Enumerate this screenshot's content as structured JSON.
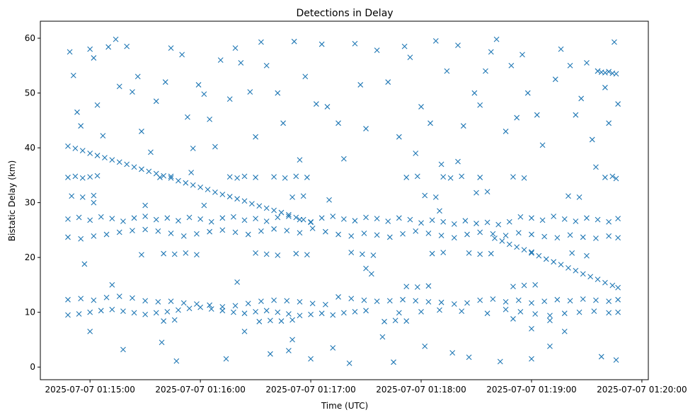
{
  "chart_data": {
    "type": "scatter",
    "title": "Detections in Delay",
    "xlabel": "Time (UTC)",
    "ylabel": "Bistatic Delay (km)",
    "x_unit": "seconds after 2025-07-07 01:14:00",
    "xlim": [
      33,
      363.5
    ],
    "ylim": [
      -2.3,
      63.1
    ],
    "grid": false,
    "marker": "x",
    "color": "#1f77b4",
    "x_ticks": [
      {
        "value": 60,
        "label": "2025-07-07 01:15:00"
      },
      {
        "value": 120,
        "label": "2025-07-07 01:16:00"
      },
      {
        "value": 180,
        "label": "2025-07-07 01:17:00"
      },
      {
        "value": 240,
        "label": "2025-07-07 01:18:00"
      },
      {
        "value": 300,
        "label": "2025-07-07 01:19:00"
      },
      {
        "value": 360,
        "label": "2025-07-07 01:20:00"
      }
    ],
    "y_ticks": [
      {
        "value": 0,
        "label": "0"
      },
      {
        "value": 10,
        "label": "10"
      },
      {
        "value": 20,
        "label": "20"
      },
      {
        "value": 30,
        "label": "30"
      },
      {
        "value": 40,
        "label": "40"
      },
      {
        "value": 50,
        "label": "50"
      },
      {
        "value": 60,
        "label": "60"
      }
    ],
    "points": [
      [
        48,
        40.3
      ],
      [
        52,
        39.9
      ],
      [
        56,
        39.5
      ],
      [
        60,
        39.0
      ],
      [
        64,
        38.6
      ],
      [
        68,
        38.2
      ],
      [
        72,
        37.8
      ],
      [
        76,
        37.4
      ],
      [
        80,
        37.0
      ],
      [
        84,
        36.5
      ],
      [
        88,
        36.1
      ],
      [
        92,
        35.7
      ],
      [
        96,
        35.3
      ],
      [
        100,
        34.9
      ],
      [
        104,
        34.5
      ],
      [
        108,
        34.0
      ],
      [
        112,
        33.6
      ],
      [
        116,
        33.2
      ],
      [
        120,
        32.8
      ],
      [
        124,
        32.4
      ],
      [
        128,
        31.9
      ],
      [
        132,
        31.5
      ],
      [
        136,
        31.1
      ],
      [
        140,
        30.7
      ],
      [
        144,
        30.3
      ],
      [
        148,
        29.8
      ],
      [
        152,
        29.4
      ],
      [
        156,
        29.0
      ],
      [
        160,
        28.6
      ],
      [
        164,
        28.2
      ],
      [
        168,
        27.8
      ],
      [
        172,
        27.3
      ],
      [
        176,
        26.9
      ],
      [
        180,
        26.5
      ],
      [
        280,
        23.5
      ],
      [
        284,
        23.0
      ],
      [
        288,
        22.4
      ],
      [
        292,
        21.9
      ],
      [
        296,
        21.4
      ],
      [
        300,
        20.8
      ],
      [
        304,
        20.3
      ],
      [
        308,
        19.7
      ],
      [
        312,
        19.2
      ],
      [
        316,
        18.7
      ],
      [
        320,
        18.1
      ],
      [
        324,
        17.6
      ],
      [
        328,
        17.0
      ],
      [
        332,
        16.5
      ],
      [
        336,
        16.0
      ],
      [
        340,
        15.4
      ],
      [
        344,
        14.9
      ],
      [
        347,
        14.5
      ],
      [
        48,
        27.0
      ],
      [
        54,
        27.3
      ],
      [
        60,
        26.8
      ],
      [
        66,
        27.4
      ],
      [
        72,
        27.1
      ],
      [
        78,
        26.6
      ],
      [
        84,
        27.2
      ],
      [
        90,
        27.5
      ],
      [
        96,
        26.9
      ],
      [
        102,
        27.2
      ],
      [
        108,
        26.7
      ],
      [
        114,
        27.3
      ],
      [
        120,
        27.0
      ],
      [
        126,
        26.5
      ],
      [
        132,
        27.2
      ],
      [
        138,
        27.4
      ],
      [
        144,
        26.8
      ],
      [
        150,
        27.1
      ],
      [
        156,
        26.6
      ],
      [
        162,
        27.3
      ],
      [
        168,
        27.5
      ],
      [
        174,
        26.9
      ],
      [
        180,
        26.4
      ],
      [
        186,
        27.2
      ],
      [
        192,
        27.5
      ],
      [
        198,
        27.0
      ],
      [
        204,
        26.7
      ],
      [
        210,
        27.3
      ],
      [
        216,
        27.1
      ],
      [
        222,
        26.6
      ],
      [
        228,
        27.2
      ],
      [
        234,
        26.9
      ],
      [
        240,
        26.3
      ],
      [
        246,
        26.8
      ],
      [
        252,
        26.5
      ],
      [
        258,
        26.1
      ],
      [
        264,
        26.7
      ],
      [
        270,
        26.2
      ],
      [
        276,
        26.4
      ],
      [
        282,
        26.0
      ],
      [
        288,
        26.5
      ],
      [
        294,
        27.4
      ],
      [
        300,
        27.2
      ],
      [
        306,
        26.8
      ],
      [
        312,
        27.5
      ],
      [
        318,
        27.0
      ],
      [
        324,
        26.6
      ],
      [
        330,
        27.2
      ],
      [
        336,
        26.9
      ],
      [
        342,
        26.5
      ],
      [
        347,
        27.1
      ],
      [
        48,
        23.7
      ],
      [
        55,
        23.4
      ],
      [
        62,
        23.9
      ],
      [
        69,
        24.2
      ],
      [
        76,
        24.6
      ],
      [
        83,
        24.9
      ],
      [
        90,
        25.1
      ],
      [
        97,
        24.8
      ],
      [
        104,
        24.4
      ],
      [
        111,
        23.9
      ],
      [
        118,
        24.3
      ],
      [
        125,
        24.7
      ],
      [
        132,
        25.0
      ],
      [
        139,
        24.6
      ],
      [
        146,
        24.2
      ],
      [
        153,
        24.8
      ],
      [
        160,
        25.2
      ],
      [
        167,
        24.9
      ],
      [
        174,
        24.5
      ],
      [
        181,
        25.3
      ],
      [
        188,
        24.7
      ],
      [
        195,
        24.2
      ],
      [
        202,
        23.9
      ],
      [
        209,
        24.4
      ],
      [
        216,
        24.1
      ],
      [
        223,
        23.7
      ],
      [
        230,
        24.3
      ],
      [
        237,
        24.8
      ],
      [
        244,
        24.4
      ],
      [
        251,
        24.0
      ],
      [
        258,
        23.6
      ],
      [
        265,
        24.2
      ],
      [
        272,
        24.6
      ],
      [
        279,
        24.3
      ],
      [
        286,
        24.0
      ],
      [
        293,
        24.5
      ],
      [
        300,
        24.2
      ],
      [
        307,
        23.8
      ],
      [
        314,
        23.6
      ],
      [
        321,
        24.1
      ],
      [
        328,
        23.7
      ],
      [
        335,
        23.5
      ],
      [
        342,
        23.9
      ],
      [
        347,
        23.6
      ],
      [
        48,
        34.6
      ],
      [
        52,
        34.8
      ],
      [
        56,
        34.5
      ],
      [
        60,
        34.7
      ],
      [
        64,
        34.9
      ],
      [
        98,
        34.6
      ],
      [
        104,
        34.8
      ],
      [
        136,
        34.7
      ],
      [
        140,
        34.5
      ],
      [
        144,
        34.8
      ],
      [
        150,
        34.6
      ],
      [
        160,
        34.7
      ],
      [
        166,
        34.5
      ],
      [
        172,
        34.8
      ],
      [
        178,
        34.6
      ],
      [
        232,
        34.6
      ],
      [
        238,
        34.8
      ],
      [
        252,
        34.7
      ],
      [
        256,
        34.5
      ],
      [
        262,
        34.8
      ],
      [
        272,
        34.6
      ],
      [
        290,
        34.7
      ],
      [
        296,
        34.5
      ],
      [
        340,
        34.6
      ],
      [
        346,
        34.4
      ],
      [
        50,
        31.2
      ],
      [
        56,
        31.0
      ],
      [
        62,
        31.3
      ],
      [
        170,
        31.0
      ],
      [
        176,
        31.2
      ],
      [
        242,
        31.3
      ],
      [
        248,
        31.0
      ],
      [
        270,
        31.8
      ],
      [
        276,
        32.0
      ],
      [
        320,
        31.2
      ],
      [
        326,
        31.0
      ],
      [
        100,
        20.7
      ],
      [
        106,
        20.6
      ],
      [
        112,
        20.8
      ],
      [
        118,
        20.5
      ],
      [
        150,
        20.8
      ],
      [
        156,
        20.6
      ],
      [
        162,
        20.4
      ],
      [
        172,
        20.7
      ],
      [
        178,
        20.5
      ],
      [
        202,
        20.9
      ],
      [
        208,
        20.6
      ],
      [
        214,
        20.4
      ],
      [
        246,
        20.7
      ],
      [
        252,
        20.9
      ],
      [
        266,
        20.8
      ],
      [
        272,
        20.6
      ],
      [
        278,
        20.7
      ],
      [
        300,
        21.0
      ],
      [
        322,
        20.8
      ],
      [
        330,
        20.3
      ],
      [
        48,
        12.3
      ],
      [
        55,
        12.5
      ],
      [
        62,
        12.2
      ],
      [
        69,
        12.7
      ],
      [
        76,
        12.9
      ],
      [
        83,
        12.6
      ],
      [
        90,
        12.1
      ],
      [
        97,
        11.9
      ],
      [
        104,
        12.0
      ],
      [
        111,
        11.7
      ],
      [
        118,
        11.5
      ],
      [
        125,
        11.3
      ],
      [
        132,
        11.0
      ],
      [
        139,
        11.2
      ],
      [
        146,
        11.6
      ],
      [
        153,
        12.0
      ],
      [
        160,
        12.2
      ],
      [
        167,
        12.1
      ],
      [
        174,
        11.9
      ],
      [
        181,
        11.6
      ],
      [
        188,
        11.4
      ],
      [
        195,
        12.8
      ],
      [
        202,
        12.5
      ],
      [
        209,
        12.2
      ],
      [
        216,
        12.0
      ],
      [
        223,
        12.1
      ],
      [
        230,
        12.3
      ],
      [
        237,
        12.1
      ],
      [
        244,
        11.9
      ],
      [
        251,
        11.8
      ],
      [
        258,
        11.5
      ],
      [
        265,
        11.7
      ],
      [
        272,
        12.2
      ],
      [
        279,
        12.4
      ],
      [
        286,
        11.9
      ],
      [
        293,
        12.2
      ],
      [
        300,
        11.7
      ],
      [
        307,
        12.0
      ],
      [
        314,
        12.3
      ],
      [
        321,
        12.1
      ],
      [
        328,
        12.4
      ],
      [
        335,
        12.2
      ],
      [
        342,
        12.0
      ],
      [
        347,
        12.3
      ],
      [
        48,
        9.5
      ],
      [
        54,
        9.7
      ],
      [
        60,
        10.0
      ],
      [
        66,
        10.3
      ],
      [
        72,
        10.5
      ],
      [
        78,
        10.2
      ],
      [
        84,
        9.9
      ],
      [
        90,
        9.6
      ],
      [
        96,
        9.9
      ],
      [
        102,
        10.1
      ],
      [
        108,
        10.4
      ],
      [
        114,
        10.7
      ],
      [
        120,
        10.9
      ],
      [
        126,
        10.6
      ],
      [
        132,
        10.3
      ],
      [
        138,
        10.0
      ],
      [
        144,
        9.8
      ],
      [
        150,
        10.1
      ],
      [
        156,
        10.3
      ],
      [
        162,
        10.0
      ],
      [
        168,
        9.7
      ],
      [
        174,
        9.4
      ],
      [
        180,
        9.6
      ],
      [
        186,
        9.8
      ],
      [
        192,
        9.5
      ],
      [
        198,
        9.9
      ],
      [
        204,
        10.1
      ],
      [
        210,
        10.3
      ],
      [
        228,
        9.9
      ],
      [
        240,
        10.1
      ],
      [
        250,
        10.4
      ],
      [
        262,
        10.2
      ],
      [
        276,
        9.8
      ],
      [
        286,
        10.5
      ],
      [
        294,
        10.1
      ],
      [
        302,
        9.7
      ],
      [
        310,
        9.4
      ],
      [
        318,
        9.8
      ],
      [
        326,
        10.0
      ],
      [
        334,
        10.2
      ],
      [
        342,
        9.9
      ],
      [
        347,
        10.0
      ],
      [
        100,
        8.4
      ],
      [
        106,
        8.6
      ],
      [
        152,
        8.3
      ],
      [
        158,
        8.5
      ],
      [
        164,
        8.4
      ],
      [
        170,
        8.6
      ],
      [
        220,
        8.3
      ],
      [
        226,
        8.5
      ],
      [
        232,
        8.4
      ],
      [
        290,
        8.8
      ],
      [
        310,
        8.5
      ],
      [
        232,
        14.7
      ],
      [
        238,
        14.6
      ],
      [
        244,
        14.8
      ],
      [
        290,
        14.7
      ],
      [
        296,
        14.9
      ],
      [
        302,
        15.0
      ],
      [
        336,
        54.0
      ],
      [
        338,
        53.8
      ],
      [
        340,
        53.7
      ],
      [
        342,
        53.9
      ],
      [
        344,
        53.6
      ],
      [
        346,
        53.5
      ],
      [
        49,
        57.5
      ],
      [
        51,
        53.2
      ],
      [
        53,
        46.5
      ],
      [
        55,
        44.0
      ],
      [
        57,
        18.8
      ],
      [
        60,
        58.0
      ],
      [
        62,
        56.4
      ],
      [
        64,
        47.8
      ],
      [
        67,
        42.2
      ],
      [
        70,
        58.4
      ],
      [
        72,
        15.0
      ],
      [
        74,
        59.8
      ],
      [
        76,
        51.2
      ],
      [
        78,
        3.2
      ],
      [
        80,
        58.5
      ],
      [
        83,
        50.2
      ],
      [
        86,
        53.0
      ],
      [
        88,
        43.0
      ],
      [
        90,
        29.5
      ],
      [
        93,
        39.2
      ],
      [
        96,
        48.5
      ],
      [
        99,
        4.5
      ],
      [
        101,
        52.0
      ],
      [
        104,
        58.2
      ],
      [
        107,
        1.1
      ],
      [
        110,
        57.0
      ],
      [
        113,
        45.6
      ],
      [
        116,
        39.9
      ],
      [
        119,
        51.5
      ],
      [
        122,
        49.8
      ],
      [
        125,
        45.2
      ],
      [
        128,
        40.2
      ],
      [
        131,
        56.0
      ],
      [
        134,
        1.5
      ],
      [
        136,
        48.9
      ],
      [
        139,
        58.2
      ],
      [
        142,
        55.5
      ],
      [
        144,
        6.5
      ],
      [
        147,
        50.2
      ],
      [
        150,
        42.0
      ],
      [
        153,
        59.3
      ],
      [
        156,
        55.0
      ],
      [
        158,
        2.4
      ],
      [
        162,
        50.0
      ],
      [
        165,
        44.5
      ],
      [
        168,
        3.0
      ],
      [
        171,
        59.4
      ],
      [
        174,
        37.8
      ],
      [
        177,
        53.0
      ],
      [
        180,
        1.5
      ],
      [
        183,
        48.0
      ],
      [
        186,
        58.9
      ],
      [
        189,
        47.5
      ],
      [
        192,
        3.5
      ],
      [
        195,
        44.5
      ],
      [
        198,
        38.0
      ],
      [
        201,
        0.7
      ],
      [
        204,
        59.0
      ],
      [
        207,
        51.5
      ],
      [
        210,
        43.5
      ],
      [
        213,
        17.0
      ],
      [
        216,
        57.8
      ],
      [
        219,
        5.5
      ],
      [
        222,
        52.0
      ],
      [
        225,
        0.9
      ],
      [
        228,
        42.0
      ],
      [
        231,
        58.5
      ],
      [
        234,
        56.5
      ],
      [
        237,
        39.0
      ],
      [
        240,
        47.5
      ],
      [
        242,
        3.8
      ],
      [
        245,
        44.5
      ],
      [
        248,
        59.5
      ],
      [
        251,
        37.0
      ],
      [
        254,
        54.0
      ],
      [
        257,
        2.6
      ],
      [
        260,
        58.7
      ],
      [
        263,
        44.0
      ],
      [
        266,
        1.8
      ],
      [
        269,
        50.0
      ],
      [
        272,
        47.8
      ],
      [
        275,
        54.0
      ],
      [
        278,
        57.5
      ],
      [
        281,
        59.8
      ],
      [
        283,
        1.0
      ],
      [
        286,
        43.0
      ],
      [
        289,
        55.0
      ],
      [
        292,
        45.5
      ],
      [
        295,
        57.0
      ],
      [
        298,
        50.0
      ],
      [
        300,
        1.5
      ],
      [
        303,
        46.0
      ],
      [
        306,
        40.5
      ],
      [
        310,
        3.8
      ],
      [
        313,
        52.5
      ],
      [
        316,
        58.0
      ],
      [
        318,
        6.5
      ],
      [
        321,
        55.0
      ],
      [
        324,
        46.0
      ],
      [
        327,
        49.0
      ],
      [
        330,
        55.5
      ],
      [
        333,
        41.5
      ],
      [
        336,
        54.0
      ],
      [
        338,
        1.9
      ],
      [
        340,
        51.0
      ],
      [
        342,
        44.5
      ],
      [
        345,
        59.3
      ],
      [
        346,
        1.3
      ],
      [
        347,
        48.0
      ],
      [
        60,
        6.5
      ],
      [
        88,
        20.5
      ],
      [
        140,
        15.5
      ],
      [
        170,
        5.0
      ],
      [
        210,
        18.0
      ],
      [
        250,
        28.5
      ],
      [
        300,
        7.0
      ],
      [
        122,
        29.5
      ],
      [
        190,
        30.5
      ],
      [
        260,
        37.5
      ],
      [
        335,
        36.5
      ],
      [
        344,
        34.8
      ],
      [
        62,
        30.0
      ],
      [
        115,
        35.5
      ]
    ]
  }
}
